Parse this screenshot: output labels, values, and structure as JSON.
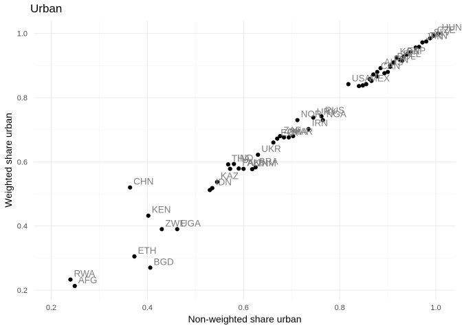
{
  "chart_data": {
    "type": "scatter",
    "title": "Urban",
    "xlabel": "Non-weighted share urban",
    "ylabel": "Weighted share urban",
    "xlim": [
      0.165,
      1.04
    ],
    "ylim": [
      0.17,
      1.04
    ],
    "xticks": [
      0.2,
      0.4,
      0.6,
      0.8,
      1.0
    ],
    "yticks": [
      0.2,
      0.4,
      0.6,
      0.8,
      1.0
    ],
    "xtick_labels": [
      "0.2",
      "0.4",
      "0.6",
      "0.8",
      "1.0"
    ],
    "ytick_labels": [
      "0.2",
      "0.4",
      "0.6",
      "0.8",
      "1.0"
    ],
    "grid": true,
    "point_color": "#000000",
    "label_color": "#7f7f7f",
    "points": [
      {
        "x": 0.24,
        "y": 0.233,
        "label": "RWA"
      },
      {
        "x": 0.249,
        "y": 0.213,
        "label": "AFG"
      },
      {
        "x": 0.373,
        "y": 0.305,
        "label": "ETH"
      },
      {
        "x": 0.406,
        "y": 0.27,
        "label": "BGD"
      },
      {
        "x": 0.364,
        "y": 0.52,
        "label": "CHN"
      },
      {
        "x": 0.402,
        "y": 0.432,
        "label": "KEN"
      },
      {
        "x": 0.43,
        "y": 0.39,
        "label": "ZWE"
      },
      {
        "x": 0.462,
        "y": 0.39,
        "label": "UGA"
      },
      {
        "x": 0.53,
        "y": 0.512,
        "label": ""
      },
      {
        "x": 0.535,
        "y": 0.518,
        "label": "IDN"
      },
      {
        "x": 0.545,
        "y": 0.537,
        "label": "KAZ"
      },
      {
        "x": 0.568,
        "y": 0.592,
        "label": "THA"
      },
      {
        "x": 0.572,
        "y": 0.578,
        "label": ""
      },
      {
        "x": 0.58,
        "y": 0.593,
        "label": "IND"
      },
      {
        "x": 0.59,
        "y": 0.579,
        "label": "PAK"
      },
      {
        "x": 0.6,
        "y": 0.578,
        "label": "ALB"
      },
      {
        "x": 0.618,
        "y": 0.577,
        "label": "VNM"
      },
      {
        "x": 0.625,
        "y": 0.583,
        "label": "BRA"
      },
      {
        "x": 0.63,
        "y": 0.622,
        "label": "UKR"
      },
      {
        "x": 0.662,
        "y": 0.66,
        "label": ""
      },
      {
        "x": 0.67,
        "y": 0.672,
        "label": "EGY"
      },
      {
        "x": 0.676,
        "y": 0.68,
        "label": "ZAF"
      },
      {
        "x": 0.684,
        "y": 0.676,
        "label": "GHA"
      },
      {
        "x": 0.694,
        "y": 0.676,
        "label": "MAR"
      },
      {
        "x": 0.703,
        "y": 0.68,
        "label": ""
      },
      {
        "x": 0.712,
        "y": 0.73,
        "label": "NOR"
      },
      {
        "x": 0.735,
        "y": 0.702,
        "label": "IRN"
      },
      {
        "x": 0.745,
        "y": 0.738,
        "label": "URY"
      },
      {
        "x": 0.762,
        "y": 0.742,
        "label": "RUS"
      },
      {
        "x": 0.765,
        "y": 0.73,
        "label": "NGA"
      },
      {
        "x": 0.818,
        "y": 0.842,
        "label": "USA"
      },
      {
        "x": 0.84,
        "y": 0.836,
        "label": ""
      },
      {
        "x": 0.848,
        "y": 0.838,
        "label": ""
      },
      {
        "x": 0.855,
        "y": 0.842,
        "label": "MEX"
      },
      {
        "x": 0.862,
        "y": 0.858,
        "label": ""
      },
      {
        "x": 0.87,
        "y": 0.872,
        "label": ""
      },
      {
        "x": 0.878,
        "y": 0.88,
        "label": "CAN"
      },
      {
        "x": 0.885,
        "y": 0.892,
        "label": "AUS"
      },
      {
        "x": 0.893,
        "y": 0.876,
        "label": ""
      },
      {
        "x": 0.9,
        "y": 0.88,
        "label": ""
      },
      {
        "x": 0.905,
        "y": 0.9,
        "label": "FIN"
      },
      {
        "x": 0.912,
        "y": 0.91,
        "label": "POL"
      },
      {
        "x": 0.918,
        "y": 0.925,
        "label": "KOR"
      },
      {
        "x": 0.925,
        "y": 0.918,
        "label": "BEL"
      },
      {
        "x": 0.933,
        "y": 0.928,
        "label": "ESP"
      },
      {
        "x": 0.94,
        "y": 0.935,
        "label": ""
      },
      {
        "x": 0.948,
        "y": 0.942,
        "label": ""
      },
      {
        "x": 0.958,
        "y": 0.956,
        "label": ""
      },
      {
        "x": 0.965,
        "y": 0.958,
        "label": ""
      },
      {
        "x": 0.972,
        "y": 0.972,
        "label": "JPN"
      },
      {
        "x": 0.98,
        "y": 0.975,
        "label": "TAN"
      },
      {
        "x": 0.988,
        "y": 0.985,
        "label": "SLV"
      },
      {
        "x": 0.995,
        "y": 0.993,
        "label": "CZE"
      },
      {
        "x": 1.005,
        "y": 1.0,
        "label": "HUN"
      },
      {
        "x": 0.878,
        "y": 0.866,
        "label": ""
      },
      {
        "x": 0.866,
        "y": 0.852,
        "label": ""
      },
      {
        "x": 0.905,
        "y": 0.896,
        "label": ""
      },
      {
        "x": 0.93,
        "y": 0.915,
        "label": ""
      }
    ]
  }
}
